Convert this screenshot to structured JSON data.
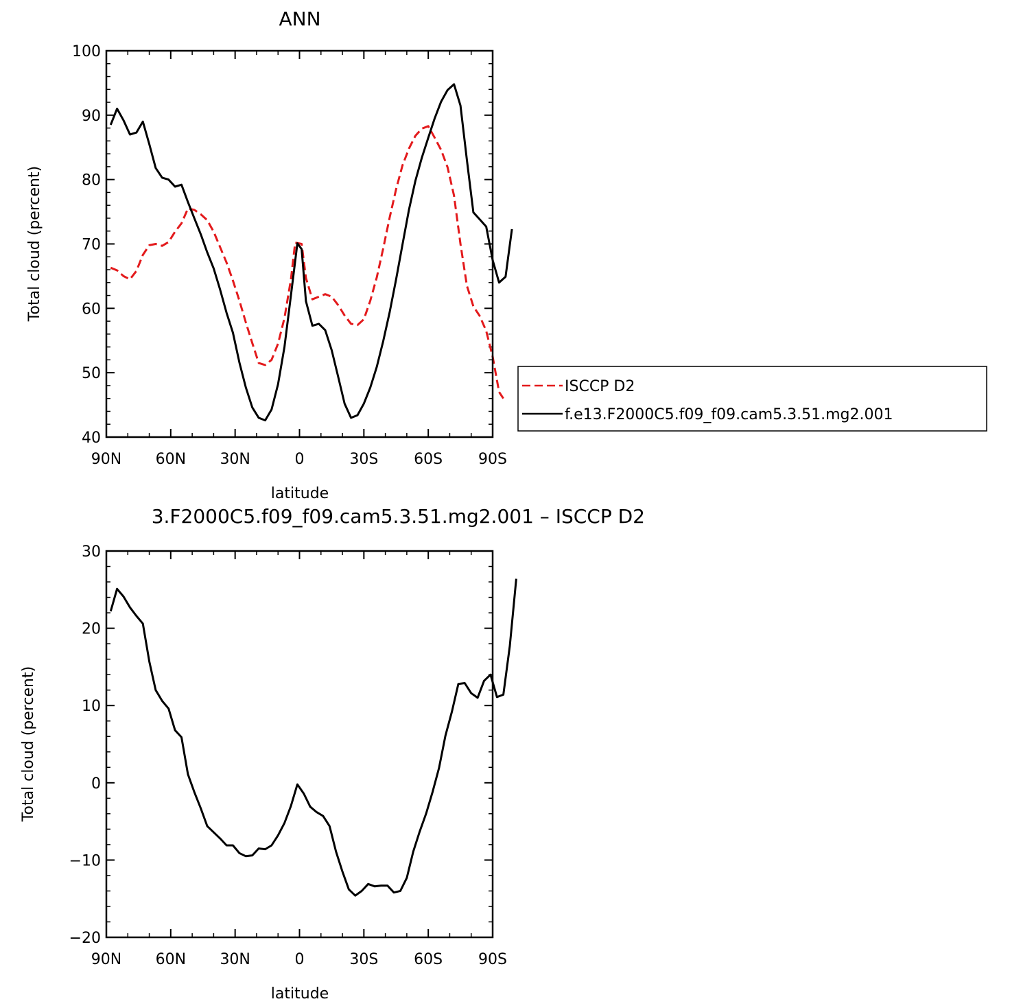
{
  "chart_data": [
    {
      "type": "line",
      "title": "ANN",
      "xlabel": "latitude",
      "ylabel": "Total cloud (percent)",
      "xlim": [
        90,
        -90
      ],
      "ylim": [
        40,
        100
      ],
      "xticks": [
        {
          "value": 90,
          "label": "90N"
        },
        {
          "value": 60,
          "label": "60N"
        },
        {
          "value": 30,
          "label": "30N"
        },
        {
          "value": 0,
          "label": "0"
        },
        {
          "value": -30,
          "label": "30S"
        },
        {
          "value": -60,
          "label": "60S"
        },
        {
          "value": -90,
          "label": "90S"
        }
      ],
      "yticks": [
        40,
        50,
        60,
        70,
        80,
        90,
        100
      ],
      "legend_position": "right",
      "series": [
        {
          "name": "ISCCP D2",
          "color": "#e31a1c",
          "dash": "dashed",
          "points": [
            [
              88,
              66.3
            ],
            [
              85,
              65.9
            ],
            [
              82,
              65.0
            ],
            [
              79,
              64.5
            ],
            [
              76,
              65.8
            ],
            [
              73,
              68.3
            ],
            [
              70,
              69.8
            ],
            [
              67,
              70.0
            ],
            [
              64,
              69.7
            ],
            [
              61,
              70.3
            ],
            [
              58,
              71.9
            ],
            [
              55,
              73.2
            ],
            [
              52,
              75.5
            ],
            [
              49,
              75.3
            ],
            [
              46,
              74.6
            ],
            [
              43,
              73.7
            ],
            [
              40,
              71.9
            ],
            [
              37,
              69.5
            ],
            [
              34,
              67.1
            ],
            [
              31,
              64.3
            ],
            [
              28,
              61.2
            ],
            [
              25,
              57.8
            ],
            [
              22,
              54.6
            ],
            [
              19,
              51.5
            ],
            [
              16,
              51.2
            ],
            [
              13,
              52.0
            ],
            [
              10,
              54.5
            ],
            [
              7,
              58.5
            ],
            [
              4,
              64.5
            ],
            [
              2,
              70.2
            ],
            [
              -1,
              70.0
            ],
            [
              -3,
              64.7
            ],
            [
              -6,
              61.4
            ],
            [
              -9,
              61.8
            ],
            [
              -12,
              62.2
            ],
            [
              -15,
              61.8
            ],
            [
              -18,
              60.5
            ],
            [
              -21,
              58.9
            ],
            [
              -24,
              57.6
            ],
            [
              -27,
              57.4
            ],
            [
              -30,
              58.3
            ],
            [
              -33,
              61.2
            ],
            [
              -36,
              64.8
            ],
            [
              -39,
              69.3
            ],
            [
              -42,
              74.1
            ],
            [
              -45,
              78.5
            ],
            [
              -48,
              82.2
            ],
            [
              -51,
              84.8
            ],
            [
              -54,
              86.8
            ],
            [
              -57,
              87.9
            ],
            [
              -60,
              88.3
            ],
            [
              -63,
              86.5
            ],
            [
              -66,
              84.6
            ],
            [
              -69,
              81.9
            ],
            [
              -72,
              77.5
            ],
            [
              -75,
              70.0
            ],
            [
              -78,
              63.5
            ],
            [
              -81,
              60.3
            ],
            [
              -84,
              58.8
            ],
            [
              -87,
              56.5
            ],
            [
              -90,
              52.5
            ],
            [
              -93,
              47.0
            ],
            [
              -95,
              46.0
            ]
          ]
        },
        {
          "name": "f.e13.F2000C5.f09_f09.cam5.3.51.mg2.001",
          "color": "#000000",
          "dash": "solid",
          "points": [
            [
              88,
              88.5
            ],
            [
              85,
              91.0
            ],
            [
              82,
              89.2
            ],
            [
              79,
              87.0
            ],
            [
              76,
              87.3
            ],
            [
              73,
              89.0
            ],
            [
              70,
              85.5
            ],
            [
              67,
              81.8
            ],
            [
              64,
              80.3
            ],
            [
              61,
              80.0
            ],
            [
              58,
              78.9
            ],
            [
              55,
              79.2
            ],
            [
              52,
              76.5
            ],
            [
              49,
              74.0
            ],
            [
              46,
              71.5
            ],
            [
              43,
              68.7
            ],
            [
              40,
              66.2
            ],
            [
              37,
              62.9
            ],
            [
              34,
              59.3
            ],
            [
              31,
              56.2
            ],
            [
              28,
              51.6
            ],
            [
              25,
              47.7
            ],
            [
              22,
              44.6
            ],
            [
              19,
              43.0
            ],
            [
              16,
              42.6
            ],
            [
              13,
              44.3
            ],
            [
              10,
              48.2
            ],
            [
              7,
              54.0
            ],
            [
              4,
              62.0
            ],
            [
              1,
              70.1
            ],
            [
              -1,
              69.2
            ],
            [
              -3,
              61.1
            ],
            [
              -6,
              57.3
            ],
            [
              -9,
              57.6
            ],
            [
              -12,
              56.6
            ],
            [
              -15,
              53.5
            ],
            [
              -18,
              49.4
            ],
            [
              -21,
              45.2
            ],
            [
              -24,
              43.0
            ],
            [
              -27,
              43.4
            ],
            [
              -30,
              45.2
            ],
            [
              -33,
              47.7
            ],
            [
              -36,
              50.9
            ],
            [
              -39,
              54.9
            ],
            [
              -42,
              59.4
            ],
            [
              -45,
              64.5
            ],
            [
              -48,
              69.9
            ],
            [
              -51,
              75.3
            ],
            [
              -54,
              79.8
            ],
            [
              -57,
              83.4
            ],
            [
              -60,
              86.5
            ],
            [
              -63,
              89.5
            ],
            [
              -66,
              92.1
            ],
            [
              -69,
              93.9
            ],
            [
              -72,
              94.8
            ],
            [
              -75,
              91.5
            ],
            [
              -78,
              83.0
            ],
            [
              -81,
              74.9
            ],
            [
              -84,
              73.8
            ],
            [
              -87,
              72.7
            ],
            [
              -90,
              67.5
            ],
            [
              -93,
              64.0
            ],
            [
              -96,
              64.9
            ],
            [
              -99,
              72.3
            ]
          ]
        }
      ]
    },
    {
      "type": "line",
      "title": "3.F2000C5.f09_f09.cam5.3.51.mg2.001 – ISCCP D2",
      "xlabel": "latitude",
      "ylabel": "Total cloud (percent)",
      "xlim": [
        90,
        -90
      ],
      "ylim": [
        -20,
        30
      ],
      "xticks": [
        {
          "value": 90,
          "label": "90N"
        },
        {
          "value": 60,
          "label": "60N"
        },
        {
          "value": 30,
          "label": "30N"
        },
        {
          "value": 0,
          "label": "0"
        },
        {
          "value": -30,
          "label": "30S"
        },
        {
          "value": -60,
          "label": "60S"
        },
        {
          "value": -90,
          "label": "90S"
        }
      ],
      "yticks": [
        -20,
        -10,
        0,
        10,
        20,
        30
      ],
      "series": [
        {
          "color": "#000000",
          "dash": "solid",
          "points": [
            [
              88,
              22.2
            ],
            [
              85,
              25.1
            ],
            [
              82,
              24.1
            ],
            [
              79,
              22.7
            ],
            [
              76,
              21.6
            ],
            [
              73,
              20.6
            ],
            [
              70,
              15.7
            ],
            [
              67,
              12.0
            ],
            [
              64,
              10.6
            ],
            [
              61,
              9.6
            ],
            [
              58,
              6.8
            ],
            [
              55,
              5.9
            ],
            [
              52,
              1.1
            ],
            [
              49,
              -1.2
            ],
            [
              46,
              -3.3
            ],
            [
              43,
              -5.6
            ],
            [
              40,
              -6.4
            ],
            [
              37,
              -7.2
            ],
            [
              34,
              -8.1
            ],
            [
              31,
              -8.1
            ],
            [
              28,
              -9.1
            ],
            [
              25,
              -9.5
            ],
            [
              22,
              -9.4
            ],
            [
              19,
              -8.5
            ],
            [
              16,
              -8.6
            ],
            [
              13,
              -8.1
            ],
            [
              10,
              -6.8
            ],
            [
              7,
              -5.2
            ],
            [
              4,
              -3.0
            ],
            [
              1,
              -0.2
            ],
            [
              -2,
              -1.4
            ],
            [
              -5,
              -3.1
            ],
            [
              -8,
              -3.8
            ],
            [
              -11,
              -4.3
            ],
            [
              -14,
              -5.6
            ],
            [
              -17,
              -8.9
            ],
            [
              -20,
              -11.5
            ],
            [
              -23,
              -13.8
            ],
            [
              -26,
              -14.6
            ],
            [
              -29,
              -14.0
            ],
            [
              -32,
              -13.1
            ],
            [
              -35,
              -13.4
            ],
            [
              -38,
              -13.3
            ],
            [
              -41,
              -13.3
            ],
            [
              -44,
              -14.2
            ],
            [
              -47,
              -14.0
            ],
            [
              -50,
              -12.3
            ],
            [
              -53,
              -8.9
            ],
            [
              -56,
              -6.3
            ],
            [
              -59,
              -4.0
            ],
            [
              -62,
              -1.2
            ],
            [
              -65,
              1.9
            ],
            [
              -68,
              6.1
            ],
            [
              -71,
              9.2
            ],
            [
              -74,
              12.8
            ],
            [
              -77,
              12.9
            ],
            [
              -80,
              11.6
            ],
            [
              -83,
              11.0
            ],
            [
              -86,
              13.2
            ],
            [
              -89,
              14.0
            ],
            [
              -92,
              11.1
            ],
            [
              -95,
              11.4
            ],
            [
              -98,
              17.7
            ],
            [
              -101,
              26.4
            ]
          ]
        }
      ]
    }
  ]
}
